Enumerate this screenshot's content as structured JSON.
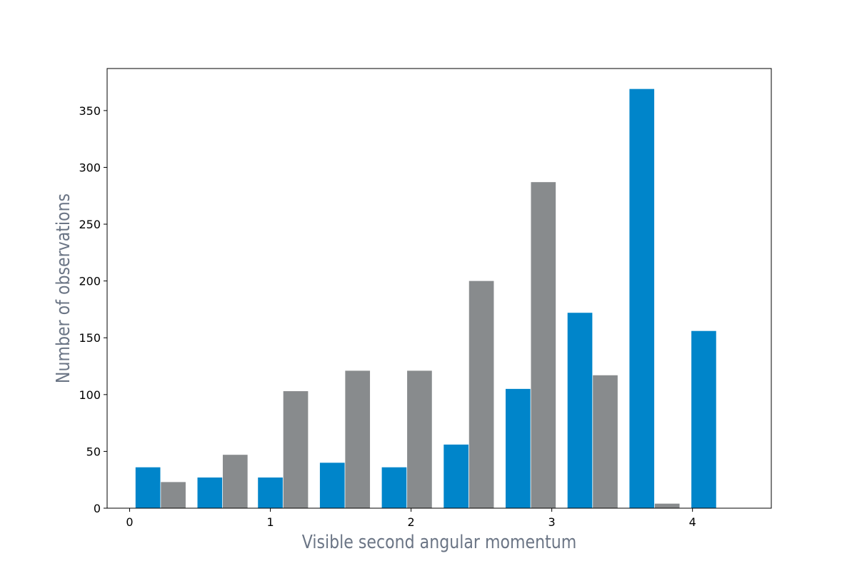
{
  "chart_data": {
    "type": "bar",
    "title": "",
    "xlabel": "Visible second angular momentum",
    "ylabel": "Number of observations",
    "xlim": [
      -0.16,
      4.56
    ],
    "ylim": [
      0,
      387
    ],
    "xticks": [
      0,
      1,
      2,
      3,
      4
    ],
    "yticks": [
      0,
      50,
      100,
      150,
      200,
      250,
      300,
      350
    ],
    "grid": false,
    "legend": "none",
    "bar_width": 0.176,
    "series": [
      {
        "color": "#0085CA",
        "x": [
          0.13,
          0.57,
          1.0,
          1.44,
          1.88,
          2.32,
          2.76,
          3.2,
          3.64,
          4.08
        ],
        "values": [
          36,
          27,
          27,
          40,
          36,
          56,
          105,
          172,
          369,
          156
        ]
      },
      {
        "color": "#888B8D",
        "x": [
          0.31,
          0.75,
          1.18,
          1.62,
          2.06,
          2.5,
          2.94,
          3.38,
          3.82
        ],
        "values": [
          23,
          47,
          103,
          121,
          121,
          200,
          287,
          117,
          4
        ]
      }
    ]
  }
}
